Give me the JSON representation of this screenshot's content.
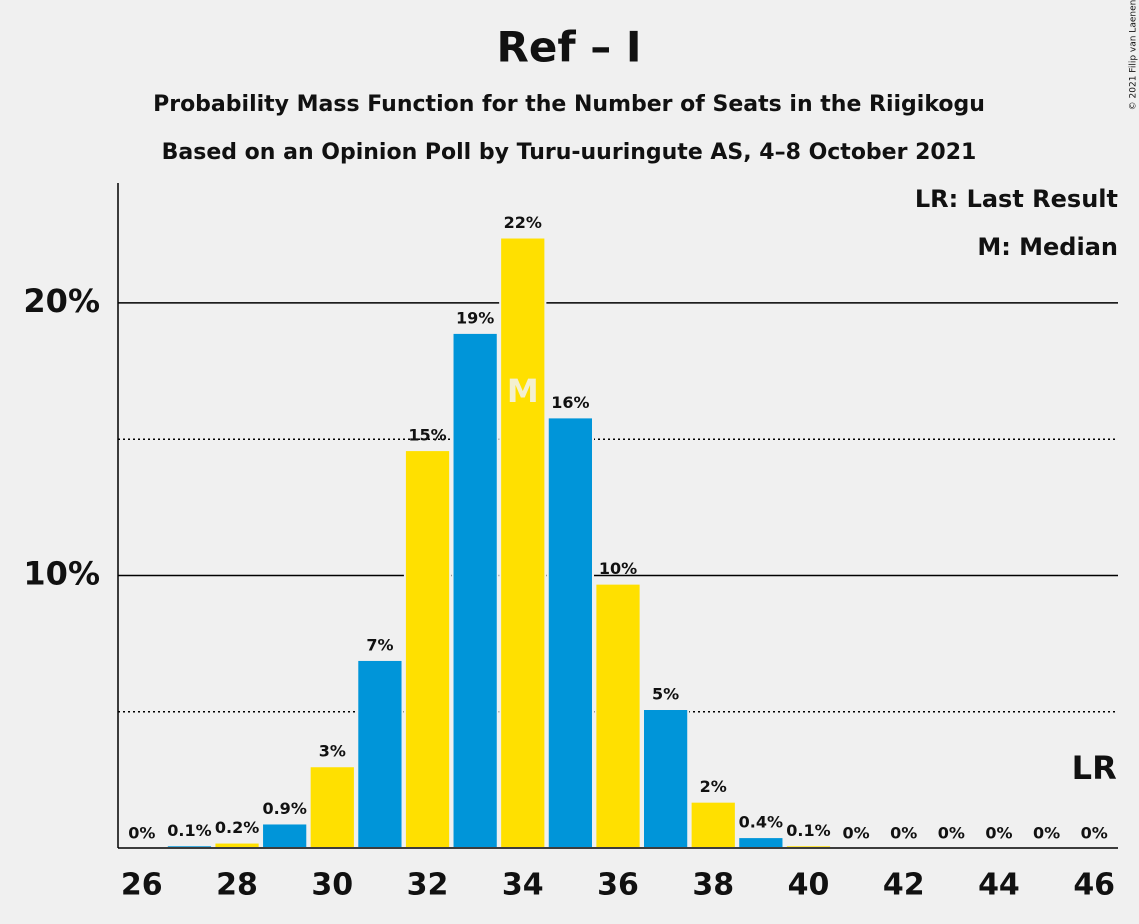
{
  "chart_data": {
    "type": "bar",
    "title": "Ref – I",
    "subtitle": "Probability Mass Function for the Number of Seats in the Riigikogu",
    "subtitle2": "Based on an Opinion Poll by Turu-uuringute AS, 4–8 October 2021",
    "copyright": "© 2021 Filip van Laenen",
    "legend": [
      "LR: Last Result",
      "M: Median"
    ],
    "x": [
      26,
      27,
      28,
      29,
      30,
      31,
      32,
      33,
      34,
      35,
      36,
      37,
      38,
      39,
      40,
      41,
      42,
      43,
      44,
      45,
      46
    ],
    "values": [
      0,
      0.1,
      0.2,
      0.9,
      3.0,
      6.9,
      14.6,
      18.9,
      22.4,
      15.8,
      9.7,
      5.1,
      1.7,
      0.4,
      0.1,
      0,
      0,
      0,
      0,
      0,
      0
    ],
    "value_labels": [
      "0%",
      "0.1%",
      "0.2%",
      "0.9%",
      "3%",
      "7%",
      "15%",
      "19%",
      "22%",
      "16%",
      "10%",
      "5%",
      "2%",
      "0.4%",
      "0.1%",
      "0%",
      "0%",
      "0%",
      "0%",
      "0%",
      "0%"
    ],
    "colors": [
      "#ffe000",
      "#0095d9"
    ],
    "xlim": [
      25.5,
      46.5
    ],
    "xticks": [
      26,
      28,
      30,
      32,
      34,
      36,
      38,
      40,
      42,
      44,
      46
    ],
    "ylim": [
      0,
      24.4
    ],
    "yticks": [
      {
        "value": 10,
        "label": "10%"
      },
      {
        "value": 20,
        "label": "20%"
      }
    ],
    "minor_grid": [
      5,
      15
    ],
    "median": 34,
    "median_label": "M",
    "last_result": 46,
    "last_result_label": "LR"
  }
}
